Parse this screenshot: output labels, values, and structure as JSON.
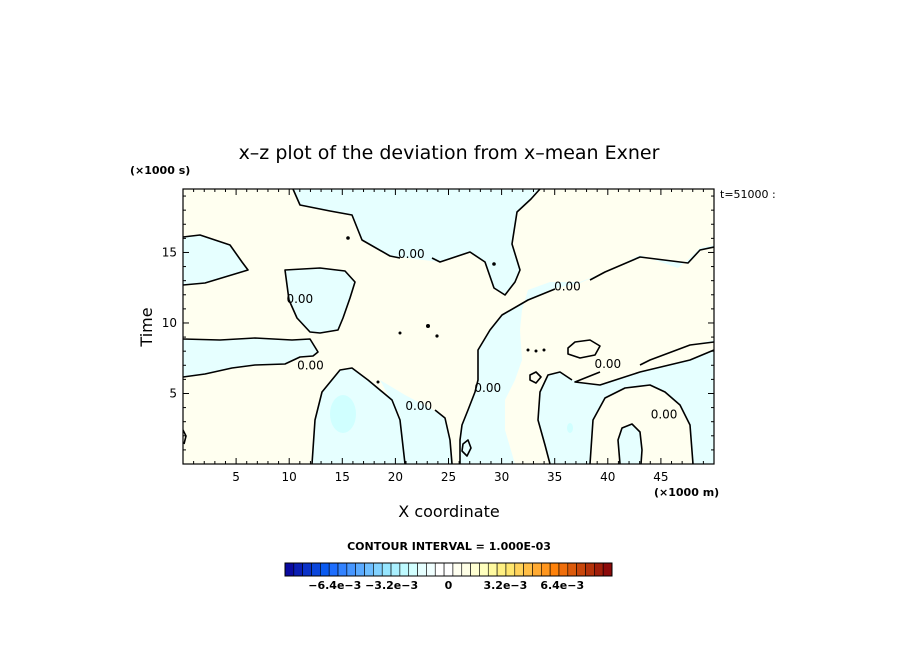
{
  "chart_data": {
    "type": "contour",
    "title": "x–z plot of the deviation from x–mean Exner",
    "xlabel": "X coordinate",
    "ylabel": "Time",
    "x_unit": "(×1000 m)",
    "y_unit": "(×1000 s)",
    "time_label": "t=51000 :",
    "xlim": [
      0,
      50
    ],
    "ylim": [
      0,
      19.5
    ],
    "xticks": [
      5,
      10,
      15,
      20,
      25,
      30,
      35,
      40,
      45
    ],
    "yticks": [
      5,
      10,
      15
    ],
    "contour_interval_text": "CONTOUR INTERVAL = 1.000E-03",
    "contour_labels": [
      {
        "text": "0.00",
        "x": 21.5,
        "y": 14.9
      },
      {
        "text": "0.00",
        "x": 36.2,
        "y": 12.6
      },
      {
        "text": "0.00",
        "x": 11.0,
        "y": 11.7
      },
      {
        "text": "0.00",
        "x": 12.0,
        "y": 7.0
      },
      {
        "text": "0.00",
        "x": 28.7,
        "y": 5.4
      },
      {
        "text": "0.00",
        "x": 22.2,
        "y": 4.1
      },
      {
        "text": "0.00",
        "x": 40.0,
        "y": 7.1
      },
      {
        "text": "0.00",
        "x": 45.3,
        "y": 3.5
      }
    ],
    "colorbar": {
      "colors": [
        "#0a0aa0",
        "#0a1eb4",
        "#0a32c8",
        "#0a46dc",
        "#0a5af0",
        "#1e6eff",
        "#3282ff",
        "#4696ff",
        "#5aaaff",
        "#6ebeff",
        "#82d2ff",
        "#96e6ff",
        "#aaf0ff",
        "#befaff",
        "#d2ffff",
        "#e6ffff",
        "#f0ffff",
        "#ffffff",
        "#ffffff",
        "#fffff0",
        "#ffffe6",
        "#ffffd2",
        "#ffffbe",
        "#fffaa0",
        "#fff082",
        "#ffe66e",
        "#ffd25a",
        "#ffbe46",
        "#ffaa32",
        "#ff961e",
        "#ff820a",
        "#f06e0a",
        "#dc5a0a",
        "#c8460a",
        "#b4320a",
        "#a01e0a",
        "#8c0a0a"
      ],
      "tick_labels": [
        "−6.4e−3",
        "−3.2e−3",
        "0",
        "3.2e−3",
        "6.4e−3"
      ],
      "tick_values": [
        -0.0064,
        -0.0032,
        0,
        0.0032,
        0.0064
      ],
      "vmin": -0.0092,
      "vmax": 0.0092
    }
  }
}
